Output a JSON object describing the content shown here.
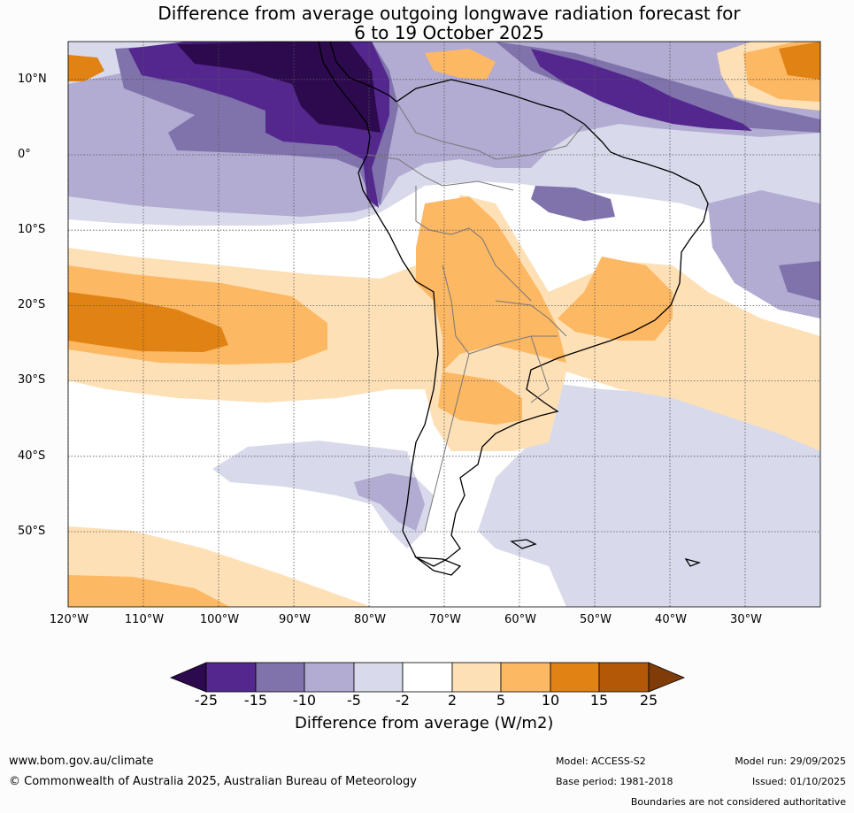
{
  "title": {
    "line1": "Difference from average outgoing longwave radiation forecast for",
    "line2": "6 to 19 October 2025"
  },
  "map": {
    "lat_labels": [
      "10°N",
      "0°",
      "10°S",
      "20°S",
      "30°S",
      "40°S",
      "50°S"
    ],
    "lat_values": [
      10,
      0,
      -10,
      -20,
      -30,
      -40,
      -50
    ],
    "lon_labels": [
      "120°W",
      "110°W",
      "100°W",
      "90°W",
      "80°W",
      "70°W",
      "60°W",
      "50°W",
      "40°W",
      "30°W"
    ],
    "lon_values": [
      -120,
      -110,
      -100,
      -90,
      -80,
      -70,
      -60,
      -50,
      -40,
      -30
    ]
  },
  "colorbar": {
    "title": "Difference from average (W/m2)",
    "tick_labels": [
      "-25",
      "-15",
      "-10",
      "-5",
      "-2",
      "2",
      "5",
      "10",
      "15",
      "25"
    ],
    "colors": {
      "lt_-25": "#2d0a4e",
      "-25_-15": "#54278f",
      "-15_-10": "#8073ac",
      "-10_-5": "#b2abd2",
      "-5_-2": "#d8daeb",
      "-2_2": "#ffffff",
      "2_5": "#fee0b6",
      "5_10": "#fdb863",
      "10_15": "#e08214",
      "15_25": "#b35806",
      "gt_25": "#7f3b08"
    }
  },
  "footer": {
    "website": "www.bom.gov.au/climate",
    "copyright": "© Commonwealth of Australia 2025, Australian Bureau of Meteorology",
    "model": "Model: ACCESS-S2",
    "base_period": "Base period: 1981-2018",
    "model_run": "Model run: 29/09/2025",
    "issued": "Issued: 01/10/2025",
    "disclaimer": "Boundaries are not considered authoritative"
  }
}
